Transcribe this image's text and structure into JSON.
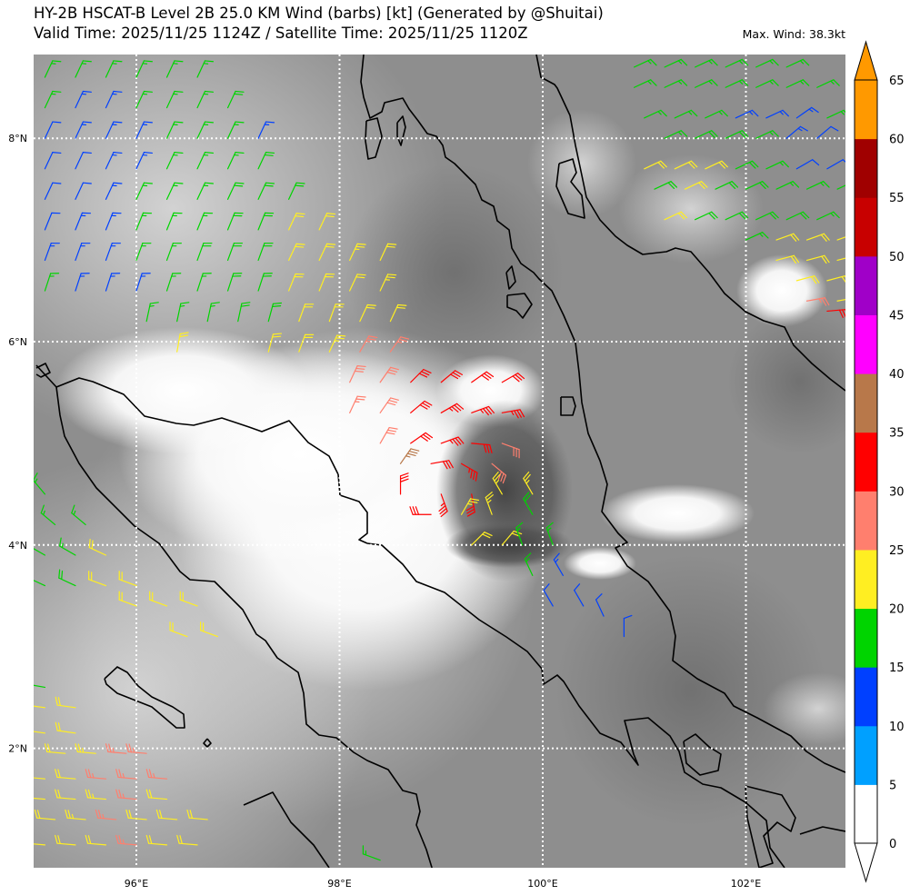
{
  "header": {
    "title": "HY-2B HSCAT-B Level 2B 25.0 KM Wind (barbs) [kt] (Generated by @Shuitai)",
    "subtitle": "Valid Time: 2025/11/25 1124Z / Satellite Time: 2025/11/25 1120Z",
    "max_wind": "Max. Wind: 38.3kt"
  },
  "map": {
    "lon_range": [
      95,
      103
    ],
    "lat_range": [
      0.8,
      8.8
    ],
    "lon_ticks": [
      96,
      98,
      100,
      102
    ],
    "lon_tick_labels": [
      "96°E",
      "98°E",
      "100°E",
      "102°E"
    ],
    "lat_ticks": [
      8,
      6,
      4,
      2
    ],
    "lat_tick_labels": [
      "8°N",
      "6°N",
      "4°N",
      "2°N"
    ],
    "gridlines": true,
    "background": "grayscale infrared satellite imagery",
    "coastline_color": "#000000"
  },
  "colorbar": {
    "unit": "kt",
    "levels": [
      0,
      5,
      10,
      15,
      20,
      25,
      30,
      35,
      40,
      45,
      50,
      55,
      60,
      65
    ],
    "labels": [
      "0",
      "5",
      "10",
      "15",
      "20",
      "25",
      "30",
      "35",
      "40",
      "45",
      "50",
      "55",
      "60",
      "65"
    ],
    "colors": [
      "#ffffff",
      "#00a0ff",
      "#0040ff",
      "#00d400",
      "#ffee22",
      "#ff7f6e",
      "#ff0000",
      "#b8784a",
      "#ff00ff",
      "#a000c8",
      "#c80000",
      "#a00000",
      "#ff9900"
    ],
    "extend_under_color": "#ffffff",
    "extend_over_color": "#ff9900"
  },
  "wind_barbs": {
    "fields": [
      "lon",
      "lat",
      "speed_kt",
      "dir_deg"
    ],
    "data": [
      [
        95.1,
        8.6,
        17,
        25
      ],
      [
        95.4,
        8.6,
        17,
        25
      ],
      [
        95.7,
        8.6,
        16,
        25
      ],
      [
        96.0,
        8.6,
        16,
        25
      ],
      [
        96.3,
        8.6,
        17,
        25
      ],
      [
        96.6,
        8.6,
        17,
        25
      ],
      [
        95.1,
        8.3,
        16,
        25
      ],
      [
        95.4,
        8.3,
        14,
        25
      ],
      [
        95.7,
        8.3,
        13,
        25
      ],
      [
        96.0,
        8.3,
        16,
        25
      ],
      [
        96.3,
        8.3,
        17,
        25
      ],
      [
        96.6,
        8.3,
        17,
        25
      ],
      [
        96.9,
        8.3,
        18,
        25
      ],
      [
        95.1,
        8.0,
        12,
        25
      ],
      [
        95.4,
        8.0,
        13,
        25
      ],
      [
        95.7,
        8.0,
        13,
        25
      ],
      [
        96.0,
        8.0,
        14,
        25
      ],
      [
        96.3,
        8.0,
        16,
        25
      ],
      [
        96.6,
        8.0,
        17,
        25
      ],
      [
        96.9,
        8.0,
        17,
        25
      ],
      [
        97.2,
        8.0,
        14,
        25
      ],
      [
        95.1,
        7.7,
        12,
        25
      ],
      [
        95.4,
        7.7,
        12,
        25
      ],
      [
        95.7,
        7.7,
        13,
        25
      ],
      [
        96.0,
        7.7,
        14,
        25
      ],
      [
        96.3,
        7.7,
        16,
        25
      ],
      [
        96.6,
        7.7,
        17,
        25
      ],
      [
        96.9,
        7.7,
        17,
        25
      ],
      [
        97.2,
        7.7,
        18,
        25
      ],
      [
        95.1,
        7.4,
        11,
        25
      ],
      [
        95.4,
        7.4,
        12,
        25
      ],
      [
        95.7,
        7.4,
        13,
        25
      ],
      [
        96.0,
        7.4,
        15,
        25
      ],
      [
        96.3,
        7.4,
        16,
        25
      ],
      [
        96.6,
        7.4,
        17,
        25
      ],
      [
        96.9,
        7.4,
        18,
        25
      ],
      [
        97.2,
        7.4,
        18,
        25
      ],
      [
        97.5,
        7.4,
        19,
        25
      ],
      [
        95.1,
        7.1,
        12,
        22
      ],
      [
        95.4,
        7.1,
        13,
        22
      ],
      [
        95.7,
        7.1,
        14,
        22
      ],
      [
        96.0,
        7.1,
        16,
        22
      ],
      [
        96.3,
        7.1,
        17,
        22
      ],
      [
        96.6,
        7.1,
        17,
        22
      ],
      [
        96.9,
        7.1,
        18,
        22
      ],
      [
        97.2,
        7.1,
        19,
        22
      ],
      [
        97.5,
        7.1,
        21,
        25
      ],
      [
        97.8,
        7.1,
        22,
        25
      ],
      [
        95.1,
        6.8,
        13,
        20
      ],
      [
        95.4,
        6.8,
        13,
        20
      ],
      [
        95.7,
        6.8,
        14,
        20
      ],
      [
        96.0,
        6.8,
        16,
        20
      ],
      [
        96.3,
        6.8,
        17,
        20
      ],
      [
        96.6,
        6.8,
        18,
        20
      ],
      [
        96.9,
        6.8,
        18,
        20
      ],
      [
        97.2,
        6.8,
        19,
        20
      ],
      [
        97.5,
        6.8,
        21,
        25
      ],
      [
        97.8,
        6.8,
        22,
        25
      ],
      [
        98.1,
        6.8,
        23,
        25
      ],
      [
        98.4,
        6.8,
        22,
        25
      ],
      [
        95.1,
        6.5,
        15,
        18
      ],
      [
        95.4,
        6.5,
        14,
        18
      ],
      [
        95.7,
        6.5,
        14,
        18
      ],
      [
        96.0,
        6.5,
        14,
        18
      ],
      [
        96.3,
        6.5,
        16,
        18
      ],
      [
        96.6,
        6.5,
        17,
        18
      ],
      [
        96.9,
        6.5,
        18,
        18
      ],
      [
        97.2,
        6.5,
        19,
        18
      ],
      [
        97.5,
        6.5,
        21,
        22
      ],
      [
        97.8,
        6.5,
        22,
        22
      ],
      [
        98.1,
        6.5,
        22,
        25
      ],
      [
        98.4,
        6.5,
        23,
        25
      ],
      [
        96.1,
        6.2,
        16,
        12
      ],
      [
        96.4,
        6.2,
        17,
        12
      ],
      [
        96.7,
        6.2,
        17,
        12
      ],
      [
        97.0,
        6.2,
        18,
        12
      ],
      [
        97.3,
        6.2,
        18,
        15
      ],
      [
        97.6,
        6.2,
        21,
        20
      ],
      [
        97.9,
        6.2,
        22,
        20
      ],
      [
        98.2,
        6.2,
        21,
        25
      ],
      [
        98.5,
        6.2,
        20,
        25
      ],
      [
        96.4,
        5.9,
        21,
        10
      ],
      [
        97.3,
        5.9,
        21,
        15
      ],
      [
        97.6,
        5.9,
        22,
        20
      ],
      [
        97.9,
        5.9,
        23,
        25
      ],
      [
        98.2,
        5.9,
        27,
        30
      ],
      [
        98.5,
        5.9,
        27,
        35
      ],
      [
        98.1,
        5.6,
        28,
        25
      ],
      [
        98.4,
        5.6,
        29,
        35
      ],
      [
        98.7,
        5.6,
        31,
        45
      ],
      [
        99.0,
        5.6,
        31,
        50
      ],
      [
        99.3,
        5.6,
        32,
        55
      ],
      [
        99.6,
        5.6,
        32,
        60
      ],
      [
        98.1,
        5.3,
        27,
        25
      ],
      [
        98.4,
        5.3,
        28,
        35
      ],
      [
        98.7,
        5.3,
        31,
        50
      ],
      [
        99.0,
        5.3,
        33,
        60
      ],
      [
        99.3,
        5.3,
        34,
        70
      ],
      [
        99.6,
        5.3,
        33,
        80
      ],
      [
        98.4,
        5.0,
        28,
        30
      ],
      [
        98.7,
        5.0,
        31,
        55
      ],
      [
        99.0,
        5.0,
        33,
        70
      ],
      [
        99.3,
        5.0,
        30,
        95
      ],
      [
        99.6,
        5.0,
        29,
        110
      ],
      [
        98.6,
        4.8,
        36,
        35
      ],
      [
        98.9,
        4.8,
        32,
        80
      ],
      [
        99.2,
        4.8,
        33,
        120
      ],
      [
        99.5,
        4.8,
        29,
        130
      ],
      [
        98.6,
        4.5,
        31,
        0
      ],
      [
        99.0,
        4.5,
        33,
        160
      ],
      [
        99.3,
        4.5,
        32,
        170
      ],
      [
        99.6,
        4.5,
        24,
        330
      ],
      [
        99.9,
        4.5,
        23,
        330
      ],
      [
        98.9,
        4.3,
        31,
        270
      ],
      [
        99.2,
        4.3,
        24,
        30
      ],
      [
        99.5,
        4.3,
        23,
        340
      ],
      [
        99.9,
        4.3,
        18,
        330
      ],
      [
        99.3,
        4.0,
        22,
        45
      ],
      [
        99.6,
        4.0,
        22,
        40
      ],
      [
        99.8,
        4.0,
        17,
        340
      ],
      [
        100.1,
        4.0,
        17,
        340
      ],
      [
        99.9,
        3.7,
        16,
        335
      ],
      [
        100.2,
        3.7,
        13,
        330
      ],
      [
        100.1,
        3.4,
        12,
        330
      ],
      [
        100.4,
        3.4,
        11,
        330
      ],
      [
        100.6,
        3.3,
        12,
        335
      ],
      [
        100.8,
        3.1,
        10,
        0
      ],
      [
        100.9,
        8.7,
        17,
        65
      ],
      [
        101.2,
        8.7,
        17,
        65
      ],
      [
        101.5,
        8.7,
        16,
        65
      ],
      [
        101.8,
        8.7,
        17,
        65
      ],
      [
        102.1,
        8.7,
        16,
        65
      ],
      [
        102.4,
        8.7,
        16,
        65
      ],
      [
        100.9,
        8.5,
        16,
        65
      ],
      [
        101.2,
        8.5,
        17,
        65
      ],
      [
        101.5,
        8.5,
        17,
        65
      ],
      [
        101.8,
        8.5,
        17,
        65
      ],
      [
        102.1,
        8.5,
        16,
        65
      ],
      [
        102.4,
        8.5,
        16,
        65
      ],
      [
        102.7,
        8.5,
        17,
        65
      ],
      [
        101.0,
        8.2,
        17,
        65
      ],
      [
        101.3,
        8.2,
        17,
        65
      ],
      [
        101.6,
        8.2,
        16,
        65
      ],
      [
        101.9,
        8.2,
        14,
        65
      ],
      [
        102.2,
        8.2,
        14,
        65
      ],
      [
        102.5,
        8.2,
        13,
        55
      ],
      [
        102.8,
        8.2,
        16,
        65
      ],
      [
        101.2,
        8.0,
        17,
        65
      ],
      [
        101.5,
        8.0,
        18,
        65
      ],
      [
        101.8,
        8.0,
        18,
        65
      ],
      [
        102.1,
        8.0,
        17,
        65
      ],
      [
        102.4,
        8.0,
        13,
        50
      ],
      [
        102.7,
        8.0,
        12,
        50
      ],
      [
        101.0,
        7.7,
        21,
        65
      ],
      [
        101.3,
        7.7,
        21,
        65
      ],
      [
        101.6,
        7.7,
        22,
        65
      ],
      [
        101.9,
        7.7,
        18,
        65
      ],
      [
        102.2,
        7.7,
        17,
        65
      ],
      [
        102.5,
        7.7,
        12,
        60
      ],
      [
        102.8,
        7.7,
        12,
        60
      ],
      [
        101.1,
        7.5,
        19,
        65
      ],
      [
        101.4,
        7.5,
        21,
        65
      ],
      [
        101.7,
        7.5,
        18,
        65
      ],
      [
        102.0,
        7.5,
        18,
        65
      ],
      [
        102.3,
        7.5,
        17,
        65
      ],
      [
        102.6,
        7.5,
        17,
        65
      ],
      [
        102.9,
        7.5,
        16,
        65
      ],
      [
        101.2,
        7.2,
        21,
        65
      ],
      [
        101.5,
        7.2,
        18,
        65
      ],
      [
        101.8,
        7.2,
        18,
        65
      ],
      [
        102.1,
        7.2,
        19,
        65
      ],
      [
        102.4,
        7.2,
        18,
        65
      ],
      [
        102.7,
        7.2,
        16,
        65
      ],
      [
        102.0,
        7.0,
        17,
        65
      ],
      [
        102.3,
        7.0,
        21,
        70
      ],
      [
        102.6,
        7.0,
        21,
        70
      ],
      [
        102.9,
        7.0,
        22,
        70
      ],
      [
        102.3,
        6.8,
        21,
        75
      ],
      [
        102.6,
        6.8,
        22,
        75
      ],
      [
        102.9,
        6.8,
        22,
        75
      ],
      [
        102.5,
        6.6,
        21,
        75
      ],
      [
        102.8,
        6.6,
        22,
        75
      ],
      [
        102.6,
        6.4,
        27,
        80
      ],
      [
        102.9,
        6.4,
        23,
        80
      ],
      [
        102.8,
        6.3,
        31,
        85
      ],
      [
        95.1,
        4.5,
        16,
        320
      ],
      [
        95.2,
        4.2,
        17,
        310
      ],
      [
        95.5,
        4.2,
        16,
        310
      ],
      [
        95.1,
        3.9,
        17,
        300
      ],
      [
        95.4,
        3.9,
        16,
        300
      ],
      [
        95.7,
        3.9,
        21,
        295
      ],
      [
        95.1,
        3.6,
        17,
        295
      ],
      [
        95.4,
        3.6,
        18,
        295
      ],
      [
        95.7,
        3.6,
        21,
        290
      ],
      [
        96.0,
        3.6,
        21,
        290
      ],
      [
        96.0,
        3.4,
        22,
        290
      ],
      [
        96.3,
        3.4,
        22,
        290
      ],
      [
        96.6,
        3.4,
        21,
        290
      ],
      [
        96.5,
        3.1,
        22,
        290
      ],
      [
        96.8,
        3.1,
        22,
        290
      ],
      [
        95.1,
        2.6,
        16,
        280
      ],
      [
        95.1,
        2.4,
        21,
        278
      ],
      [
        95.4,
        2.4,
        22,
        278
      ],
      [
        95.1,
        2.15,
        21,
        278
      ],
      [
        95.4,
        2.15,
        22,
        278
      ],
      [
        95.3,
        1.95,
        22,
        275
      ],
      [
        95.6,
        1.95,
        23,
        275
      ],
      [
        95.9,
        1.95,
        27,
        275
      ],
      [
        96.1,
        1.95,
        26,
        275
      ],
      [
        95.1,
        1.7,
        21,
        275
      ],
      [
        95.4,
        1.7,
        22,
        275
      ],
      [
        95.7,
        1.7,
        26,
        275
      ],
      [
        96.0,
        1.7,
        27,
        275
      ],
      [
        96.3,
        1.7,
        27,
        275
      ],
      [
        95.1,
        1.5,
        22,
        275
      ],
      [
        95.4,
        1.5,
        22,
        275
      ],
      [
        95.7,
        1.5,
        23,
        275
      ],
      [
        96.0,
        1.5,
        27,
        275
      ],
      [
        96.3,
        1.5,
        22,
        275
      ],
      [
        95.2,
        1.3,
        22,
        275
      ],
      [
        95.5,
        1.3,
        23,
        275
      ],
      [
        95.8,
        1.3,
        27,
        275
      ],
      [
        96.1,
        1.3,
        22,
        275
      ],
      [
        96.4,
        1.3,
        21,
        275
      ],
      [
        96.7,
        1.3,
        22,
        275
      ],
      [
        95.1,
        1.05,
        21,
        275
      ],
      [
        95.4,
        1.05,
        22,
        275
      ],
      [
        95.7,
        1.05,
        22,
        275
      ],
      [
        96.0,
        1.05,
        26,
        275
      ],
      [
        96.3,
        1.05,
        22,
        275
      ],
      [
        96.6,
        1.05,
        21,
        275
      ],
      [
        98.4,
        0.9,
        17,
        290
      ]
    ]
  }
}
